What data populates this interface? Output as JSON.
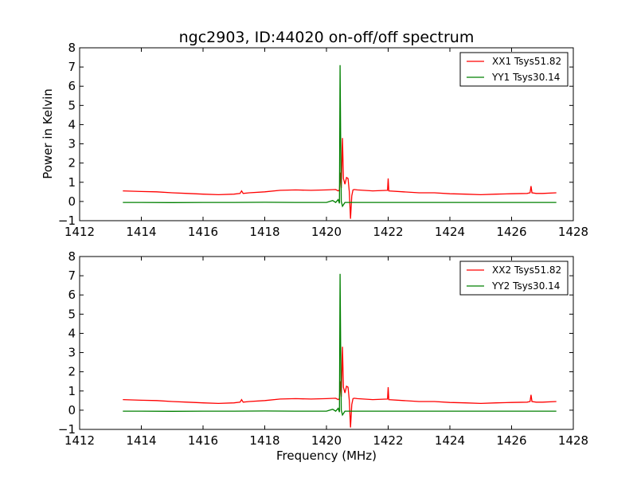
{
  "figure": {
    "title": "ngc2903, ID:44020 on-off/off spectrum",
    "xlabel": "Frequency (MHz)",
    "ylabel": "Power in Kelvin"
  },
  "chart_data": [
    {
      "type": "line",
      "xlim": [
        1412,
        1428
      ],
      "ylim": [
        -1,
        8
      ],
      "xticks": [
        1412,
        1414,
        1416,
        1418,
        1420,
        1422,
        1424,
        1426,
        1428
      ],
      "yticks": [
        -1,
        0,
        1,
        2,
        3,
        4,
        5,
        6,
        7,
        8
      ],
      "xtick_labels": [
        "1412",
        "1414",
        "1416",
        "1418",
        "1420",
        "1422",
        "1424",
        "1426",
        "1428"
      ],
      "ytick_labels": [
        "−1",
        "0",
        "1",
        "2",
        "3",
        "4",
        "5",
        "6",
        "7",
        "8"
      ],
      "legend_position": "top-right",
      "series": [
        {
          "name": "XX1 Tsys51.82",
          "color": "#ff0000",
          "x": [
            1413.4,
            1414.0,
            1414.5,
            1415.0,
            1415.5,
            1416.0,
            1416.5,
            1417.0,
            1417.2,
            1417.25,
            1417.3,
            1417.5,
            1418.0,
            1418.5,
            1419.0,
            1419.5,
            1420.0,
            1420.3,
            1420.38,
            1420.42,
            1420.45,
            1420.48,
            1420.52,
            1420.55,
            1420.6,
            1420.65,
            1420.7,
            1420.74,
            1420.78,
            1420.82,
            1420.86,
            1420.9,
            1421.0,
            1421.5,
            1421.98,
            1422.0,
            1422.02,
            1422.5,
            1423.0,
            1423.5,
            1424.0,
            1424.5,
            1425.0,
            1425.5,
            1426.0,
            1426.5,
            1426.6,
            1426.63,
            1426.66,
            1426.8,
            1427.0,
            1427.45
          ],
          "y": [
            0.55,
            0.52,
            0.5,
            0.45,
            0.42,
            0.38,
            0.35,
            0.38,
            0.42,
            0.55,
            0.42,
            0.45,
            0.5,
            0.58,
            0.6,
            0.58,
            0.6,
            0.62,
            0.55,
            0.6,
            1.5,
            0.7,
            3.3,
            1.2,
            0.9,
            1.25,
            1.2,
            0.5,
            -0.9,
            0.3,
            0.6,
            0.62,
            0.6,
            0.55,
            0.58,
            1.2,
            0.55,
            0.5,
            0.45,
            0.45,
            0.4,
            0.38,
            0.35,
            0.38,
            0.4,
            0.42,
            0.45,
            0.8,
            0.45,
            0.42,
            0.42,
            0.45
          ]
        },
        {
          "name": "YY1 Tsys30.14",
          "color": "#008000",
          "x": [
            1413.4,
            1414.0,
            1415.0,
            1416.0,
            1417.0,
            1418.0,
            1419.0,
            1420.0,
            1420.2,
            1420.3,
            1420.38,
            1420.42,
            1420.44,
            1420.46,
            1420.48,
            1420.52,
            1420.6,
            1421.0,
            1422.0,
            1423.0,
            1424.0,
            1425.0,
            1426.0,
            1427.0,
            1427.45
          ],
          "y": [
            -0.05,
            -0.05,
            -0.06,
            -0.05,
            -0.05,
            -0.04,
            -0.05,
            -0.05,
            0.05,
            -0.05,
            0.1,
            -0.1,
            7.1,
            3.5,
            0.0,
            -0.25,
            -0.05,
            -0.05,
            -0.05,
            -0.05,
            -0.05,
            -0.05,
            -0.05,
            -0.05,
            -0.05
          ]
        }
      ]
    },
    {
      "type": "line",
      "xlim": [
        1412,
        1428
      ],
      "ylim": [
        -1,
        8
      ],
      "xticks": [
        1412,
        1414,
        1416,
        1418,
        1420,
        1422,
        1424,
        1426,
        1428
      ],
      "yticks": [
        -1,
        0,
        1,
        2,
        3,
        4,
        5,
        6,
        7,
        8
      ],
      "xtick_labels": [
        "1412",
        "1414",
        "1416",
        "1418",
        "1420",
        "1422",
        "1424",
        "1426",
        "1428"
      ],
      "ytick_labels": [
        "−1",
        "0",
        "1",
        "2",
        "3",
        "4",
        "5",
        "6",
        "7",
        "8"
      ],
      "legend_position": "top-right",
      "series": [
        {
          "name": "XX2 Tsys51.82",
          "color": "#ff0000",
          "x": [
            1413.4,
            1414.0,
            1414.5,
            1415.0,
            1415.5,
            1416.0,
            1416.5,
            1417.0,
            1417.2,
            1417.25,
            1417.3,
            1417.5,
            1418.0,
            1418.5,
            1419.0,
            1419.5,
            1420.0,
            1420.3,
            1420.38,
            1420.42,
            1420.45,
            1420.48,
            1420.52,
            1420.55,
            1420.6,
            1420.65,
            1420.7,
            1420.74,
            1420.78,
            1420.82,
            1420.86,
            1420.9,
            1421.0,
            1421.5,
            1421.98,
            1422.0,
            1422.02,
            1422.5,
            1423.0,
            1423.5,
            1424.0,
            1424.5,
            1425.0,
            1425.5,
            1426.0,
            1426.5,
            1426.6,
            1426.63,
            1426.66,
            1426.8,
            1427.0,
            1427.45
          ],
          "y": [
            0.55,
            0.52,
            0.5,
            0.45,
            0.42,
            0.38,
            0.35,
            0.38,
            0.42,
            0.55,
            0.42,
            0.45,
            0.5,
            0.58,
            0.6,
            0.58,
            0.6,
            0.62,
            0.55,
            0.6,
            1.5,
            0.7,
            3.3,
            1.2,
            0.9,
            1.25,
            1.2,
            0.5,
            -0.9,
            0.3,
            0.6,
            0.62,
            0.6,
            0.55,
            0.58,
            1.2,
            0.55,
            0.5,
            0.45,
            0.45,
            0.4,
            0.38,
            0.35,
            0.38,
            0.4,
            0.42,
            0.45,
            0.8,
            0.45,
            0.42,
            0.42,
            0.45
          ]
        },
        {
          "name": "YY2 Tsys30.14",
          "color": "#008000",
          "x": [
            1413.4,
            1414.0,
            1415.0,
            1416.0,
            1417.0,
            1418.0,
            1419.0,
            1420.0,
            1420.2,
            1420.3,
            1420.38,
            1420.42,
            1420.44,
            1420.46,
            1420.48,
            1420.52,
            1420.6,
            1421.0,
            1422.0,
            1423.0,
            1424.0,
            1425.0,
            1426.0,
            1427.0,
            1427.45
          ],
          "y": [
            -0.05,
            -0.05,
            -0.06,
            -0.05,
            -0.05,
            -0.04,
            -0.05,
            -0.05,
            0.05,
            -0.05,
            0.1,
            -0.1,
            7.1,
            3.5,
            0.0,
            -0.25,
            -0.05,
            -0.05,
            -0.05,
            -0.05,
            -0.05,
            -0.05,
            -0.05,
            -0.05,
            -0.05
          ]
        }
      ]
    }
  ]
}
